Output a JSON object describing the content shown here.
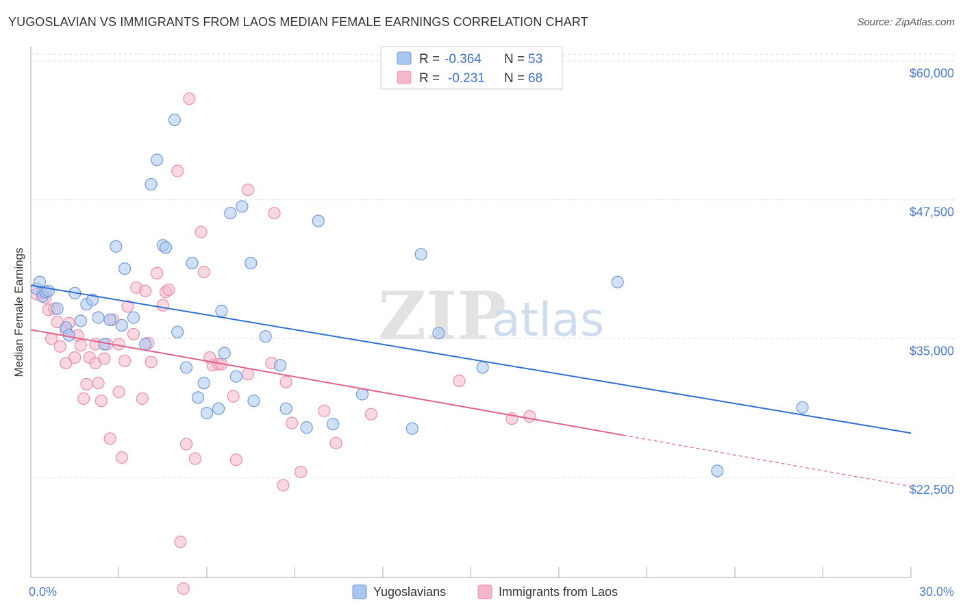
{
  "title": "YUGOSLAVIAN VS IMMIGRANTS FROM LAOS MEDIAN FEMALE EARNINGS CORRELATION CHART",
  "source": "Source: ZipAtlas.com",
  "watermark": {
    "zip": "ZIP",
    "atlas": "atlas"
  },
  "colors": {
    "blue_fill": "#a9c6f0",
    "blue_stroke": "#6f9ad8",
    "blue_line": "#2f6fd0",
    "pink_fill": "#f5b8cb",
    "pink_stroke": "#e98fac",
    "pink_line": "#e0628c",
    "grid": "#dddddd",
    "tick_text": "#4a7ccf"
  },
  "legend": {
    "r_label": "R =",
    "n_label": "N =",
    "rows": [
      {
        "r": "-0.364",
        "n": "53"
      },
      {
        "r": "-0.231",
        "n": "68"
      }
    ]
  },
  "chart_data": {
    "type": "scatter",
    "title": "YUGOSLAVIAN VS IMMIGRANTS FROM LAOS MEDIAN FEMALE EARNINGS CORRELATION CHART",
    "xlabel": "",
    "ylabel": "Median Female Earnings",
    "xlim": [
      0,
      30
    ],
    "ylim": [
      13500,
      61300
    ],
    "x_tick_labels": [
      "0.0%",
      "30.0%"
    ],
    "y_ticks": [
      {
        "value": 22500,
        "label": "$22,500"
      },
      {
        "value": 35000,
        "label": "$35,000"
      },
      {
        "value": 47500,
        "label": "$47,500"
      },
      {
        "value": 60000,
        "label": "$60,000"
      }
    ],
    "grid": "horizontal dashed",
    "legend_placement": "top-center",
    "series": [
      {
        "name": "Yugoslavians",
        "trend": {
          "x": [
            0,
            30
          ],
          "y": [
            39800,
            26500
          ],
          "solid_until": 30
        },
        "points": [
          [
            0.2,
            39500
          ],
          [
            0.3,
            40100
          ],
          [
            0.4,
            38800
          ],
          [
            0.5,
            39200
          ],
          [
            0.6,
            39300
          ],
          [
            0.9,
            37700
          ],
          [
            1.2,
            36000
          ],
          [
            1.3,
            35300
          ],
          [
            1.5,
            39100
          ],
          [
            1.7,
            36600
          ],
          [
            1.9,
            38100
          ],
          [
            2.1,
            38500
          ],
          [
            2.3,
            36900
          ],
          [
            2.5,
            34500
          ],
          [
            2.7,
            36700
          ],
          [
            2.9,
            43300
          ],
          [
            3.1,
            36200
          ],
          [
            3.2,
            41300
          ],
          [
            3.5,
            36900
          ],
          [
            3.9,
            34500
          ],
          [
            4.1,
            48900
          ],
          [
            4.3,
            51100
          ],
          [
            4.5,
            43400
          ],
          [
            4.6,
            43200
          ],
          [
            4.9,
            54700
          ],
          [
            5.0,
            35600
          ],
          [
            5.3,
            32400
          ],
          [
            5.5,
            41800
          ],
          [
            5.7,
            29700
          ],
          [
            5.9,
            31000
          ],
          [
            6.0,
            28300
          ],
          [
            6.4,
            28700
          ],
          [
            6.5,
            37500
          ],
          [
            6.6,
            33700
          ],
          [
            6.8,
            46300
          ],
          [
            7.0,
            31600
          ],
          [
            7.2,
            46900
          ],
          [
            7.5,
            41800
          ],
          [
            7.6,
            29400
          ],
          [
            8.0,
            35200
          ],
          [
            8.5,
            32600
          ],
          [
            8.7,
            28700
          ],
          [
            9.4,
            27000
          ],
          [
            9.8,
            45600
          ],
          [
            10.3,
            27300
          ],
          [
            11.3,
            30000
          ],
          [
            13.0,
            26900
          ],
          [
            13.3,
            42600
          ],
          [
            13.9,
            35500
          ],
          [
            15.4,
            32400
          ],
          [
            20.0,
            40100
          ],
          [
            23.4,
            23100
          ],
          [
            26.3,
            28800
          ]
        ]
      },
      {
        "name": "Immigrants from Laos",
        "trend": {
          "x": [
            0,
            30
          ],
          "y": [
            35800,
            21700
          ],
          "solid_until": 20.2
        },
        "points": [
          [
            0.2,
            39000
          ],
          [
            0.4,
            39100
          ],
          [
            0.5,
            38700
          ],
          [
            0.6,
            37600
          ],
          [
            0.7,
            35000
          ],
          [
            0.8,
            37700
          ],
          [
            0.9,
            36500
          ],
          [
            1.0,
            34300
          ],
          [
            1.2,
            35700
          ],
          [
            1.3,
            36400
          ],
          [
            1.2,
            32800
          ],
          [
            1.5,
            33300
          ],
          [
            1.6,
            35300
          ],
          [
            1.7,
            34400
          ],
          [
            1.8,
            29600
          ],
          [
            1.9,
            30900
          ],
          [
            2.0,
            33300
          ],
          [
            2.2,
            34500
          ],
          [
            2.3,
            31000
          ],
          [
            2.2,
            32800
          ],
          [
            2.4,
            29400
          ],
          [
            2.5,
            33200
          ],
          [
            2.6,
            34500
          ],
          [
            2.7,
            26000
          ],
          [
            2.8,
            36700
          ],
          [
            3.0,
            34500
          ],
          [
            3.0,
            30200
          ],
          [
            3.2,
            33000
          ],
          [
            3.1,
            24300
          ],
          [
            3.3,
            37900
          ],
          [
            3.5,
            35400
          ],
          [
            3.6,
            39600
          ],
          [
            3.8,
            29600
          ],
          [
            3.9,
            39300
          ],
          [
            4.0,
            34600
          ],
          [
            4.1,
            32900
          ],
          [
            4.3,
            40900
          ],
          [
            4.5,
            38000
          ],
          [
            4.6,
            39200
          ],
          [
            4.7,
            39400
          ],
          [
            5.0,
            50100
          ],
          [
            5.1,
            16700
          ],
          [
            5.2,
            12500
          ],
          [
            5.3,
            25500
          ],
          [
            5.4,
            56600
          ],
          [
            5.6,
            24200
          ],
          [
            5.8,
            44600
          ],
          [
            5.9,
            41000
          ],
          [
            6.1,
            33300
          ],
          [
            6.2,
            32600
          ],
          [
            6.4,
            32700
          ],
          [
            6.5,
            32700
          ],
          [
            6.9,
            29800
          ],
          [
            7.0,
            24100
          ],
          [
            7.4,
            31800
          ],
          [
            7.4,
            48400
          ],
          [
            8.2,
            32800
          ],
          [
            8.3,
            46300
          ],
          [
            8.6,
            21800
          ],
          [
            8.7,
            31100
          ],
          [
            8.9,
            27400
          ],
          [
            9.2,
            23000
          ],
          [
            10.0,
            28500
          ],
          [
            10.4,
            25600
          ],
          [
            11.6,
            28200
          ],
          [
            14.6,
            31200
          ],
          [
            16.4,
            27800
          ],
          [
            17.0,
            28000
          ]
        ]
      }
    ]
  }
}
